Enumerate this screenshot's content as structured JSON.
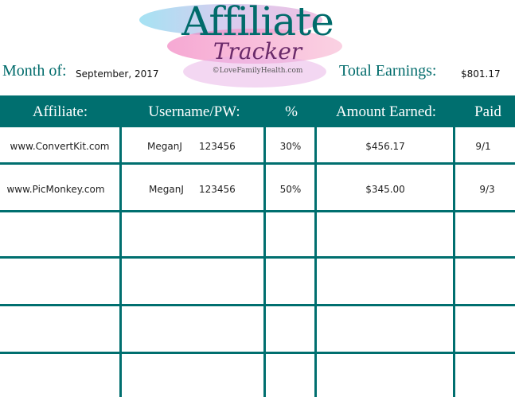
{
  "header": {
    "title": "Affiliate",
    "subtitle": "Tracker",
    "credit": "©LoveFamilyHealth.com",
    "month_label": "Month of:",
    "month_value": "September, 2017",
    "total_label": "Total Earnings:",
    "total_value": "$801.17"
  },
  "colors": {
    "accent": "#006f6f",
    "subtitle": "#6a2a6a"
  },
  "table": {
    "columns": [
      "Affiliate:",
      "Username/PW:",
      "%",
      "Amount Earned:",
      "Paid"
    ],
    "rows": [
      {
        "affiliate": "www.ConvertKit.com",
        "username": "MeganJ",
        "password": "123456",
        "percent": "30%",
        "amount": "$456.17",
        "paid": "9/1"
      },
      {
        "affiliate": "www.PicMonkey.com",
        "username": "MeganJ",
        "password": "123456",
        "percent": "50%",
        "amount": "$345.00",
        "paid": "9/3"
      }
    ]
  }
}
